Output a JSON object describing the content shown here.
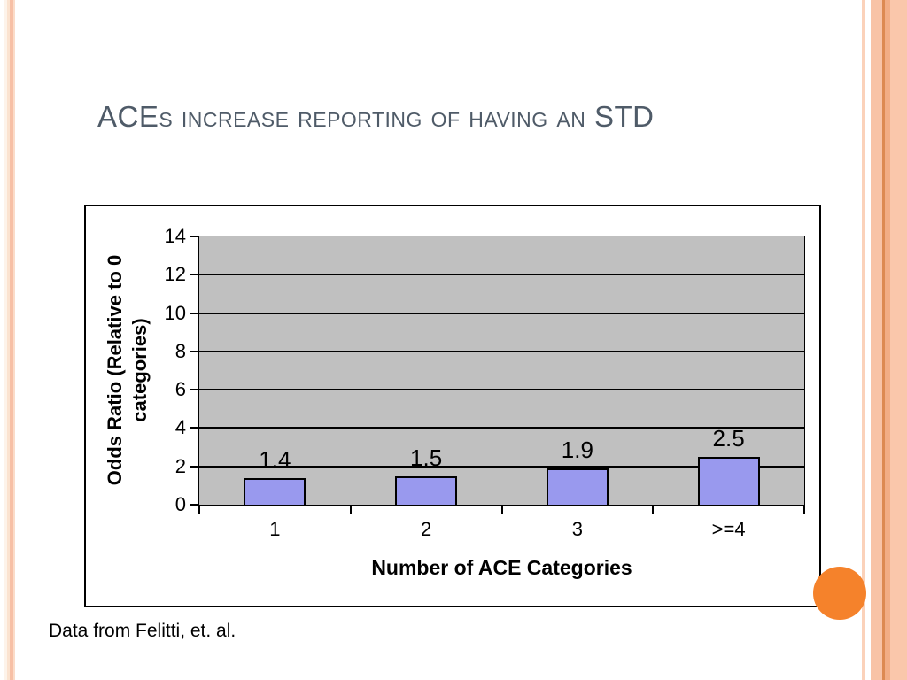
{
  "slide": {
    "title": "ACEs increase reporting of having an STD",
    "footnote": "Data from Felitti, et. al."
  },
  "chart_data": {
    "type": "bar",
    "categories": [
      "1",
      "2",
      "3",
      ">=4"
    ],
    "values": [
      1.4,
      1.5,
      1.9,
      2.5
    ],
    "data_labels": [
      "1.4",
      "1.5",
      "1.9",
      "2.5"
    ],
    "xlabel": "Number of ACE Categories",
    "ylabel": "Odds Ratio (Relative to 0 categories)",
    "ylabel_lines": [
      "Odds Ratio (Relative to 0",
      "categories)"
    ],
    "ylim": [
      0,
      14
    ],
    "yticks": [
      0,
      2,
      4,
      6,
      8,
      10,
      12,
      14
    ],
    "grid": true,
    "legend": "none",
    "plot_bg_color": "#c0c0c0",
    "bar_fill_color": "#9999ee",
    "bar_border_color": "#000000"
  },
  "decor": {
    "title_color": "#4f5b68",
    "accent_circle_color": "#f5822b",
    "left_stripes": [
      {
        "x": 5,
        "w": 3,
        "color": "#fdf3ea"
      },
      {
        "x": 8,
        "w": 3,
        "color": "#fbe3d0"
      },
      {
        "x": 11,
        "w": 4,
        "color": "#f7c0a6"
      },
      {
        "x": 15,
        "w": 2,
        "color": "#fbdcc9"
      }
    ],
    "right_stripes": [
      {
        "x": 973,
        "w": 4,
        "color": "#fbd2ba"
      },
      {
        "x": 983,
        "w": 13,
        "color": "#f8c3a6"
      },
      {
        "x": 996,
        "w": 3,
        "color": "#dd8a52"
      },
      {
        "x": 999,
        "w": 6,
        "color": "#f2ad85"
      },
      {
        "x": 1005,
        "w": 19,
        "color": "#fac7ab"
      }
    ]
  }
}
